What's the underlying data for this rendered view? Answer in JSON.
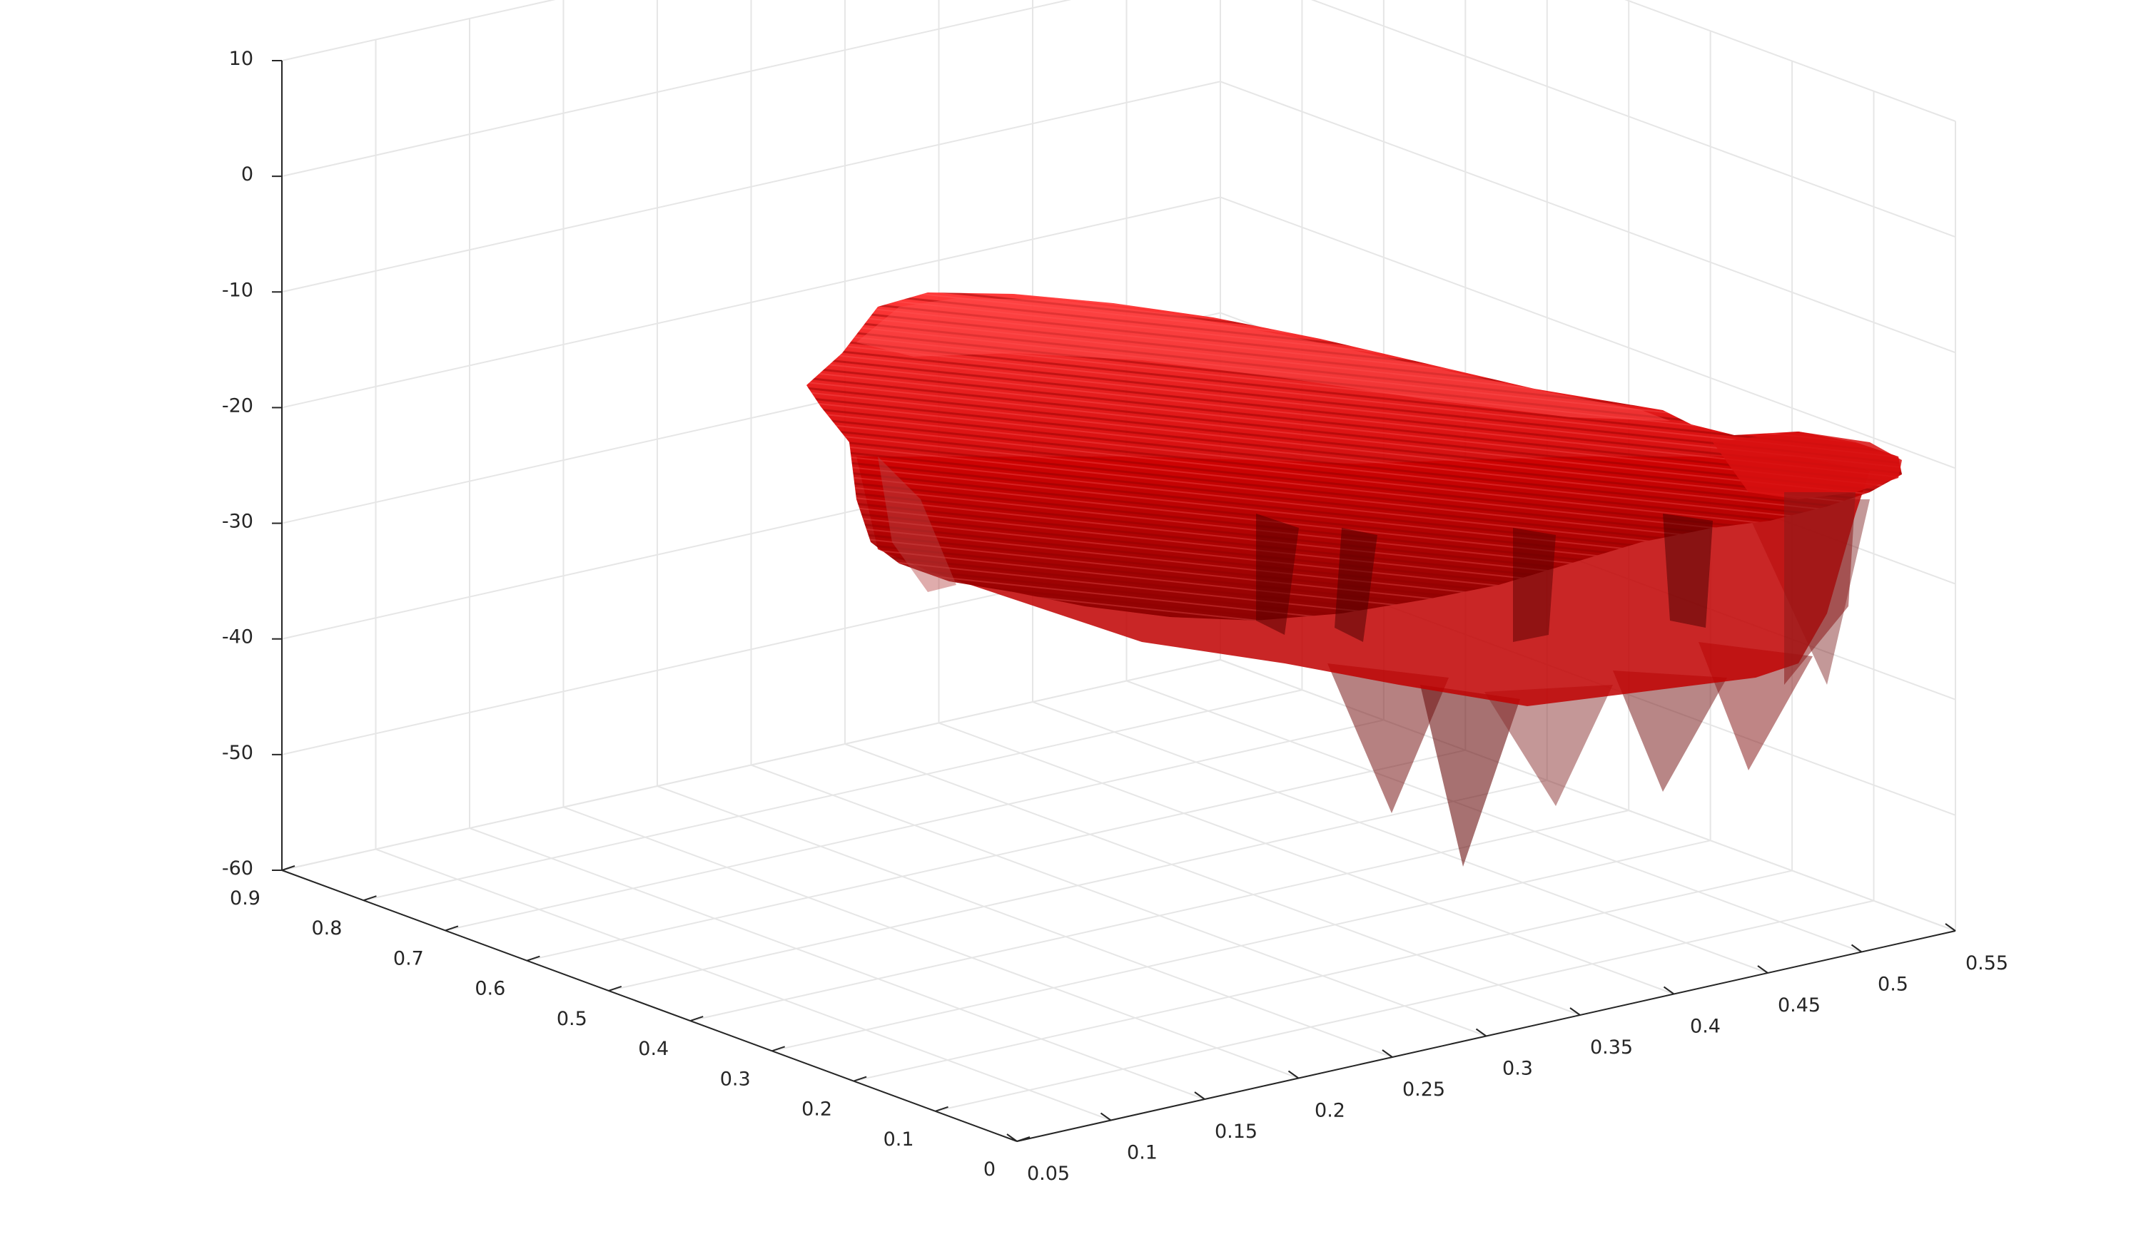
{
  "chart_data": {
    "type": "surface3d",
    "title": "",
    "xlabel": "",
    "ylabel": "",
    "zlabel": "",
    "grid": true,
    "surface_color": "#e00000",
    "background_color": "#ffffff",
    "x_axis": {
      "range": [
        0.05,
        0.55
      ],
      "ticks": [
        0.05,
        0.1,
        0.15,
        0.2,
        0.25,
        0.3,
        0.35,
        0.4,
        0.45,
        0.5,
        0.55
      ],
      "tick_labels": [
        "0.05",
        "0.1",
        "0.15",
        "0.2",
        "0.25",
        "0.3",
        "0.35",
        "0.4",
        "0.45",
        "0.5",
        "0.55"
      ]
    },
    "y_axis": {
      "range": [
        0,
        0.9
      ],
      "ticks": [
        0,
        0.1,
        0.2,
        0.3,
        0.4,
        0.5,
        0.6,
        0.7,
        0.8,
        0.9
      ],
      "tick_labels": [
        "0",
        "0.1",
        "0.2",
        "0.3",
        "0.4",
        "0.5",
        "0.6",
        "0.7",
        "0.8",
        "0.9"
      ]
    },
    "z_axis": {
      "range": [
        -60,
        10
      ],
      "ticks": [
        -60,
        -50,
        -40,
        -30,
        -20,
        -10,
        0,
        10
      ],
      "tick_labels": [
        "-60",
        "-50",
        "-40",
        "-30",
        "-20",
        "-10",
        "0",
        "10"
      ]
    }
  }
}
